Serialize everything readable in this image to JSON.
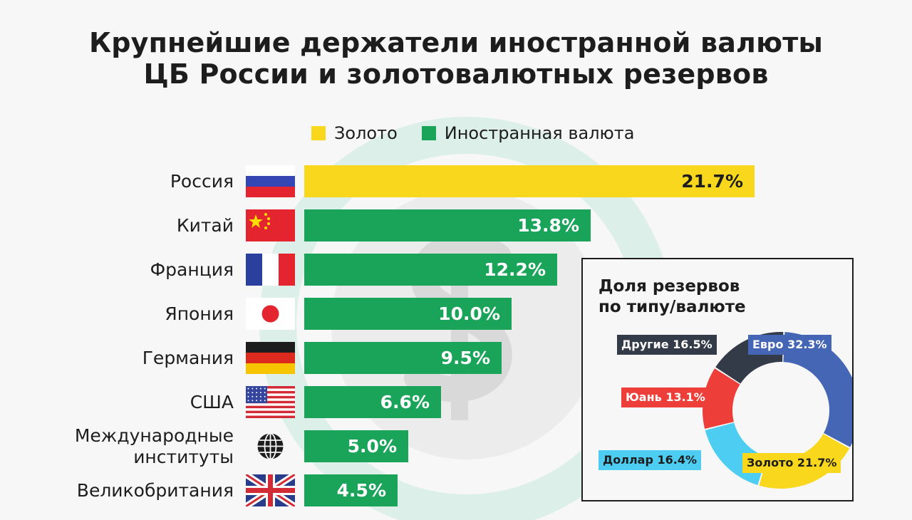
{
  "title_line1": "Крупнейшие держатели иностранной валюты",
  "title_line2": "ЦБ России и золотовалютных резервов",
  "legend": [
    {
      "label": "Золото",
      "color": "#f9d71c"
    },
    {
      "label": "Иностранная валюта",
      "color": "#1aa45a"
    }
  ],
  "chart_data": [
    {
      "type": "bar",
      "orientation": "horizontal",
      "categories": [
        "Россия",
        "Китай",
        "Франция",
        "Япония",
        "Германия",
        "США",
        "Международные институты",
        "Великобритания"
      ],
      "values": [
        21.7,
        13.8,
        12.2,
        10.0,
        9.5,
        6.6,
        5.0,
        4.5
      ],
      "value_labels": [
        "21.7%",
        "13.8%",
        "12.2%",
        "10.0%",
        "9.5%",
        "6.6%",
        "5.0%",
        "4.5%"
      ],
      "category_lines": [
        [
          "Россия"
        ],
        [
          "Китай"
        ],
        [
          "Франция"
        ],
        [
          "Япония"
        ],
        [
          "Германия"
        ],
        [
          "США"
        ],
        [
          "Международные",
          "институты"
        ],
        [
          "Великобритания"
        ]
      ],
      "bar_types": [
        "gold",
        "green",
        "green",
        "green",
        "green",
        "green",
        "green",
        "green"
      ],
      "flag_icons": [
        "russia-flag-icon",
        "china-flag-icon",
        "france-flag-icon",
        "japan-flag-icon",
        "germany-flag-icon",
        "usa-flag-icon",
        "globe-icon",
        "uk-flag-icon"
      ],
      "colors": {
        "gold": "#f9d71c",
        "green": "#1aa45a"
      },
      "xlim": [
        0,
        21.7
      ],
      "grid": false,
      "legend": "top"
    },
    {
      "type": "pie",
      "variant": "donut",
      "title_line1": "Доля резервов",
      "title_line2": "по типу/валюте",
      "categories": [
        "Евро",
        "Золото",
        "Доллар",
        "Юань",
        "Другие"
      ],
      "values": [
        32.3,
        21.7,
        16.4,
        13.1,
        16.5
      ],
      "labels": [
        "Евро 32.3%",
        "Золото 21.7%",
        "Доллар 16.4%",
        "Юань 13.1%",
        "Другие 16.5%"
      ],
      "colors": [
        "#4565b5",
        "#f9d71c",
        "#4dcdf2",
        "#ee3e3a",
        "#333a48"
      ],
      "label_text_colors": [
        "#ffffff",
        "#1d1d1d",
        "#1d1d1d",
        "#ffffff",
        "#ffffff"
      ]
    }
  ]
}
